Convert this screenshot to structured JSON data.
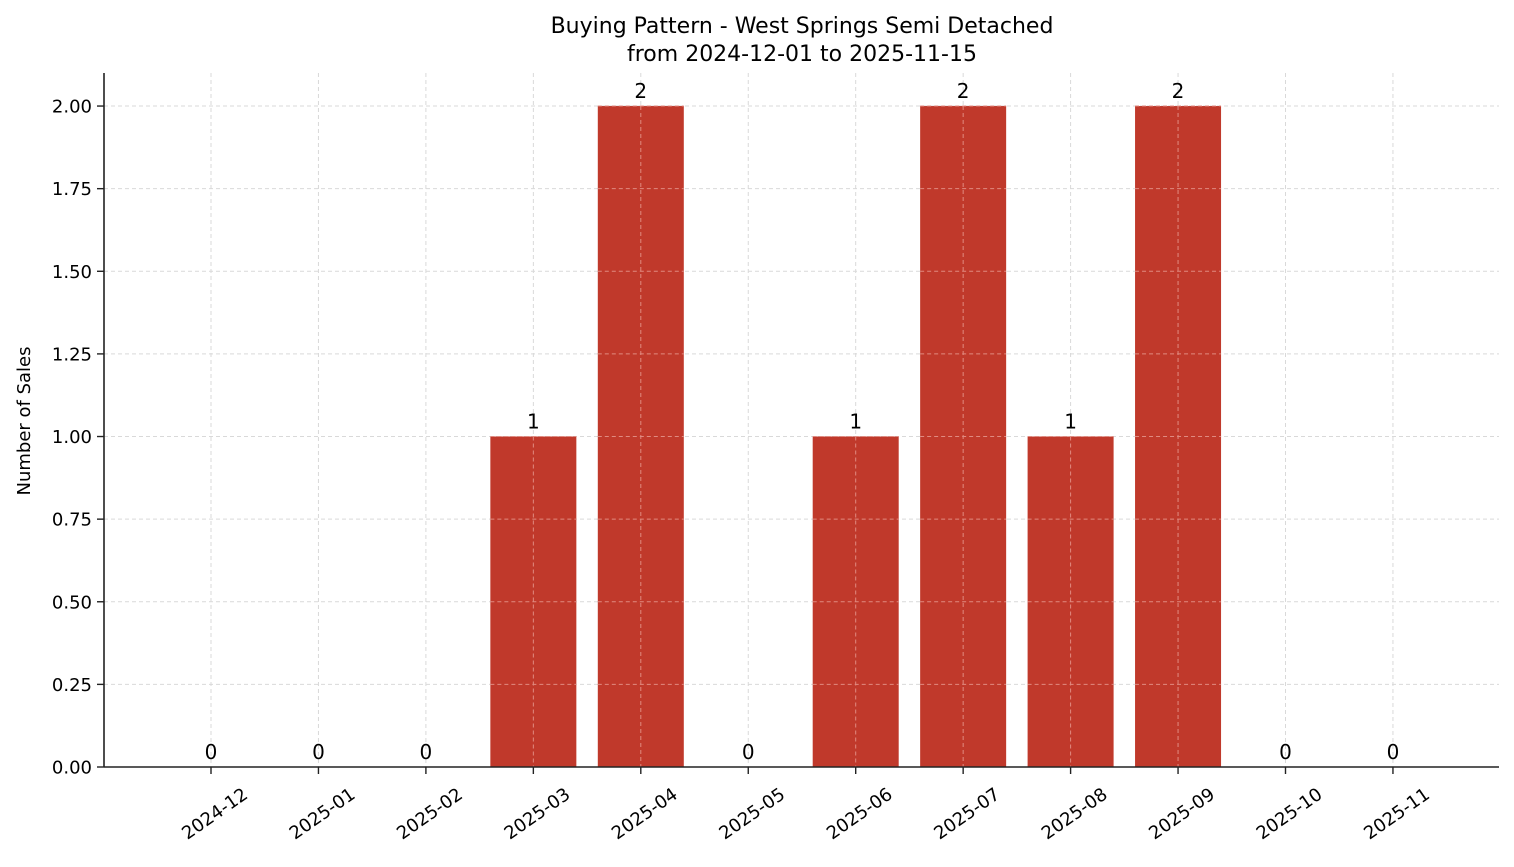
{
  "chart_data": {
    "type": "bar",
    "title": "Buying Pattern - West Springs Semi Detached",
    "subtitle": "from 2024-12-01 to 2025-11-15",
    "xlabel": "",
    "ylabel": "Number of Sales",
    "categories": [
      "2024-12",
      "2025-01",
      "2025-02",
      "2025-03",
      "2025-04",
      "2025-05",
      "2025-06",
      "2025-07",
      "2025-08",
      "2025-09",
      "2025-10",
      "2025-11"
    ],
    "values": [
      0,
      0,
      0,
      1,
      2,
      0,
      1,
      2,
      1,
      2,
      0,
      0
    ],
    "data_labels": [
      "0",
      "0",
      "0",
      "1",
      "2",
      "0",
      "1",
      "2",
      "1",
      "2",
      "0",
      "0"
    ],
    "ylim": [
      0,
      2.1
    ],
    "yticks": [
      0,
      0.25,
      0.5,
      0.75,
      1.0,
      1.25,
      1.5,
      1.75,
      2.0
    ],
    "ytick_labels": [
      "0.00",
      "0.25",
      "0.50",
      "0.75",
      "1.00",
      "1.25",
      "1.50",
      "1.75",
      "2.00"
    ],
    "grid": true,
    "grid_style": "dashed",
    "legend": null,
    "bar_color": "#c0392b",
    "x_tick_rotation": 35
  }
}
